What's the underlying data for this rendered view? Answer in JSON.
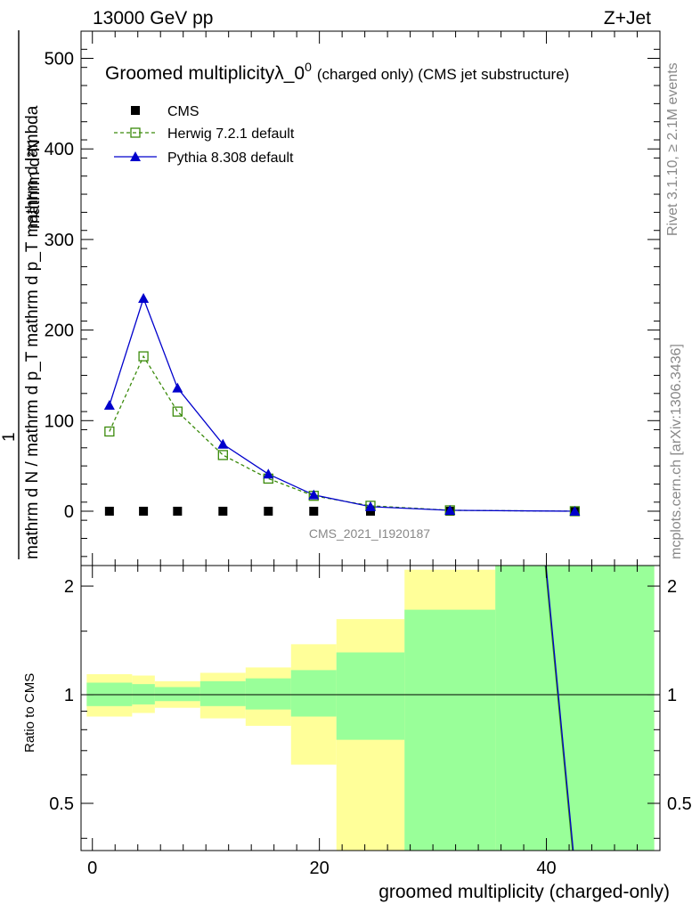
{
  "header": {
    "left": "13000 GeV pp",
    "right": "Z+Jet"
  },
  "side": {
    "rivet": "Rivet 3.1.10, ≥ 2.1M events",
    "mcplots": "mcplots.cern.ch [arXiv:1306.3436]"
  },
  "colors": {
    "cms": "#000000",
    "herwig": "#3a8a0a",
    "pythia": "#0000cc",
    "band_inner": "#99ff99",
    "band_outer": "#ffff99"
  },
  "chart_data": [
    {
      "type": "line",
      "title_main": "Groomed multiplicityλ_0",
      "title_sup": "0",
      "title_tail": "(charged only) (CMS jet substructure)",
      "ylabel_num": "mathrm d²N",
      "ylabel_one": "1",
      "ylabel_den": "mathrm d N / mathrm d p_T mathrm d p_T mathrm d lambda",
      "watermark": "CMS_2021_I1920187",
      "xlim": [
        -1,
        50
      ],
      "ylim": [
        -60,
        530
      ],
      "yticks": [
        0,
        100,
        200,
        300,
        400,
        500
      ],
      "grid": false,
      "legend_position": "top-left",
      "series": [
        {
          "name": "CMS",
          "marker": "square",
          "x": [
            1.5,
            4.5,
            7.5,
            11.5,
            15.5,
            19.5,
            24.5,
            31.5,
            42.5
          ],
          "y": [
            0,
            0,
            0,
            0,
            0,
            0,
            0,
            0,
            0
          ]
        },
        {
          "name": "Herwig 7.2.1 default",
          "marker": "open-square",
          "x": [
            1.5,
            4.5,
            7.5,
            11.5,
            15.5,
            19.5,
            24.5,
            31.5,
            42.5
          ],
          "y": [
            88,
            171,
            110,
            62,
            36,
            17,
            6,
            1,
            0
          ]
        },
        {
          "name": "Pythia 8.308 default",
          "marker": "triangle",
          "x": [
            1.5,
            4.5,
            7.5,
            11.5,
            15.5,
            19.5,
            24.5,
            31.5,
            42.5
          ],
          "y": [
            117,
            235,
            136,
            74,
            41,
            18,
            5,
            1,
            0
          ]
        }
      ]
    },
    {
      "type": "area",
      "ylabel": "Ratio to CMS",
      "xlabel": "groomed multiplicity (charged-only)",
      "xlim": [
        -1,
        50
      ],
      "ylim": [
        0.37,
        2.28
      ],
      "yscale": "log",
      "xticks": [
        0,
        20,
        40
      ],
      "yticks": [
        0.5,
        1,
        2
      ],
      "bins": [
        {
          "x0": -0.5,
          "x1": 3.5,
          "inner": [
            0.93,
            1.08
          ],
          "outer": [
            0.87,
            1.14
          ]
        },
        {
          "x0": 3.5,
          "x1": 5.5,
          "inner": [
            0.94,
            1.07
          ],
          "outer": [
            0.89,
            1.13
          ]
        },
        {
          "x0": 5.5,
          "x1": 9.5,
          "inner": [
            0.96,
            1.05
          ],
          "outer": [
            0.92,
            1.09
          ]
        },
        {
          "x0": 9.5,
          "x1": 13.5,
          "inner": [
            0.93,
            1.09
          ],
          "outer": [
            0.86,
            1.15
          ]
        },
        {
          "x0": 13.5,
          "x1": 17.5,
          "inner": [
            0.91,
            1.11
          ],
          "outer": [
            0.82,
            1.19
          ]
        },
        {
          "x0": 17.5,
          "x1": 21.5,
          "inner": [
            0.87,
            1.17
          ],
          "outer": [
            0.64,
            1.38
          ]
        },
        {
          "x0": 21.5,
          "x1": 27.5,
          "inner": [
            0.75,
            1.31
          ],
          "outer": [
            0.35,
            1.62
          ]
        },
        {
          "x0": 27.5,
          "x1": 35.5,
          "inner": [
            0.35,
            1.72
          ],
          "outer": [
            0.35,
            2.22
          ]
        },
        {
          "x0": 35.5,
          "x1": 49.5,
          "inner": [
            0.35,
            2.35
          ],
          "outer": [
            0.35,
            2.35
          ]
        }
      ],
      "ratio_line": {
        "x": [
          39.9,
          42.3
        ],
        "y": [
          2.35,
          0.35
        ]
      }
    }
  ]
}
